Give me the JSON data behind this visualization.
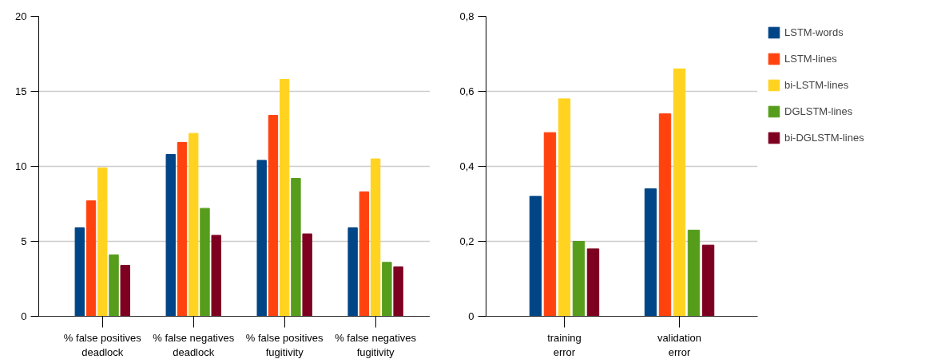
{
  "chart_data": [
    {
      "type": "bar",
      "categories": [
        "% false positives\ndeadlock",
        "% false negatives\ndeadlock",
        "% false positives\nfugitivity",
        "% false negatives\nfugitivity"
      ],
      "series": [
        {
          "color": "#004586",
          "values": [
            5.9,
            10.8,
            10.4,
            5.9
          ]
        },
        {
          "color": "#ff420e",
          "values": [
            7.7,
            11.6,
            13.4,
            8.3
          ]
        },
        {
          "color": "#ffd320",
          "values": [
            9.9,
            12.2,
            15.8,
            10.5
          ]
        },
        {
          "color": "#579d1c",
          "values": [
            4.1,
            7.2,
            9.2,
            3.6
          ]
        },
        {
          "color": "#7e0021",
          "values": [
            3.4,
            5.4,
            5.5,
            3.3
          ]
        }
      ],
      "ylim": [
        0,
        20
      ],
      "yticks": [
        0,
        5,
        10,
        15,
        20
      ],
      "grid": "y",
      "legend": false
    },
    {
      "type": "bar",
      "categories": [
        "training\nerror",
        "validation\nerror"
      ],
      "series": [
        {
          "name": "LSTM-words",
          "color": "#004586",
          "values": [
            0.32,
            0.34
          ]
        },
        {
          "name": "LSTM-lines",
          "color": "#ff420e",
          "values": [
            0.49,
            0.54
          ]
        },
        {
          "name": "bi-LSTM-lines",
          "color": "#ffd320",
          "values": [
            0.58,
            0.66
          ]
        },
        {
          "name": "DGLSTM-lines",
          "color": "#579d1c",
          "values": [
            0.2,
            0.23
          ]
        },
        {
          "name": "bi-DGLSTM-lines",
          "color": "#7e0021",
          "values": [
            0.18,
            0.19
          ]
        }
      ],
      "ylim": [
        0,
        0.8
      ],
      "yticks": [
        {
          "value": 0,
          "label": "0"
        },
        {
          "value": 0.2,
          "label": "0,2"
        },
        {
          "value": 0.4,
          "label": "0,4"
        },
        {
          "value": 0.6,
          "label": "0,6"
        },
        {
          "value": 0.8,
          "label": "0,8"
        }
      ],
      "grid": "y",
      "legend": "right"
    }
  ]
}
